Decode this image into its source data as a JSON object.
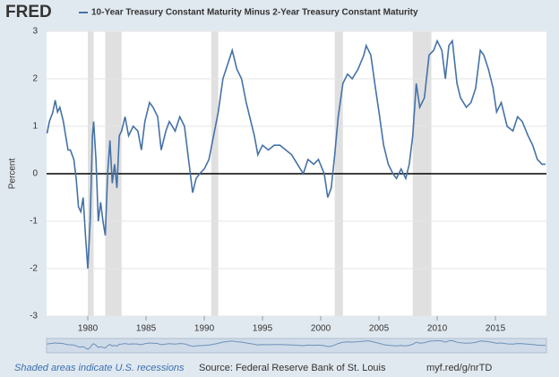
{
  "brand": "FRED",
  "chart_data": {
    "type": "line",
    "title": "10-Year Treasury Constant Maturity Minus 2-Year Treasury Constant Maturity",
    "y_label": "Percent",
    "xlim": [
      1976.46,
      2019.38
    ],
    "xticks": [
      1980,
      1985,
      1990,
      1995,
      2000,
      2005,
      2010,
      2015
    ],
    "ylim": [
      -3,
      3
    ],
    "yticks": [
      -3,
      -2,
      -1,
      0,
      1,
      2,
      3
    ],
    "grid": true,
    "recessions": [
      [
        1980.0,
        1980.5
      ],
      [
        1981.5,
        1982.9
      ],
      [
        1990.6,
        1991.2
      ],
      [
        2001.2,
        2001.9
      ],
      [
        2007.9,
        2009.5
      ]
    ],
    "series": [
      {
        "name": "10-Year Treasury Constant Maturity Minus 2-Year Treasury Constant Maturity",
        "color": "#4572a7",
        "x": [
          1976.5,
          1976.7,
          1977.0,
          1977.2,
          1977.4,
          1977.6,
          1977.9,
          1978.1,
          1978.3,
          1978.5,
          1978.8,
          1979.0,
          1979.2,
          1979.4,
          1979.6,
          1979.8,
          1980.0,
          1980.2,
          1980.4,
          1980.5,
          1980.7,
          1980.9,
          1981.1,
          1981.3,
          1981.5,
          1981.7,
          1981.9,
          1982.1,
          1982.3,
          1982.5,
          1982.7,
          1982.9,
          1983.2,
          1983.5,
          1983.9,
          1984.3,
          1984.6,
          1984.9,
          1985.3,
          1985.6,
          1986.0,
          1986.3,
          1986.7,
          1987.0,
          1987.5,
          1987.9,
          1988.3,
          1988.7,
          1989.0,
          1989.3,
          1989.6,
          1990.0,
          1990.4,
          1990.8,
          1991.2,
          1991.6,
          1992.0,
          1992.4,
          1992.8,
          1993.2,
          1993.6,
          1993.9,
          1994.3,
          1994.6,
          1995.0,
          1995.5,
          1996.0,
          1996.5,
          1997.0,
          1997.5,
          1998.0,
          1998.5,
          1998.9,
          1999.4,
          1999.8,
          2000.3,
          2000.6,
          2000.9,
          2001.2,
          2001.5,
          2001.9,
          2002.3,
          2002.7,
          2003.2,
          2003.7,
          2003.9,
          2004.3,
          2004.7,
          2005.0,
          2005.4,
          2005.8,
          2006.2,
          2006.5,
          2006.9,
          2007.3,
          2007.6,
          2007.9,
          2008.2,
          2008.5,
          2008.9,
          2009.3,
          2009.7,
          2010.0,
          2010.4,
          2010.7,
          2011.0,
          2011.3,
          2011.7,
          2012.0,
          2012.5,
          2012.9,
          2013.3,
          2013.7,
          2014.0,
          2014.4,
          2014.8,
          2015.1,
          2015.5,
          2016.0,
          2016.5,
          2016.9,
          2017.3,
          2017.8,
          2018.2,
          2018.6,
          2019.0,
          2019.3
        ],
        "values": [
          0.85,
          1.1,
          1.3,
          1.55,
          1.3,
          1.4,
          1.1,
          0.8,
          0.5,
          0.5,
          0.3,
          -0.1,
          -0.7,
          -0.8,
          -0.5,
          -1.3,
          -2.0,
          -1.0,
          0.8,
          1.1,
          0.3,
          -1.0,
          -0.6,
          -1.0,
          -1.3,
          0.0,
          0.7,
          -0.2,
          0.2,
          -0.3,
          0.8,
          0.9,
          1.2,
          0.8,
          1.0,
          0.9,
          0.5,
          1.1,
          1.5,
          1.4,
          1.2,
          0.5,
          0.9,
          1.1,
          0.9,
          1.2,
          1.0,
          0.2,
          -0.4,
          -0.1,
          0.0,
          0.1,
          0.3,
          0.8,
          1.3,
          2.0,
          2.3,
          2.6,
          2.2,
          2.0,
          1.5,
          1.2,
          0.8,
          0.4,
          0.6,
          0.5,
          0.6,
          0.6,
          0.5,
          0.4,
          0.2,
          0.0,
          0.3,
          0.2,
          0.3,
          0.0,
          -0.5,
          -0.3,
          0.4,
          1.2,
          1.9,
          2.1,
          2.0,
          2.2,
          2.5,
          2.7,
          2.5,
          1.8,
          1.3,
          0.6,
          0.2,
          0.0,
          -0.1,
          0.1,
          -0.1,
          0.2,
          0.8,
          1.9,
          1.4,
          1.6,
          2.5,
          2.6,
          2.8,
          2.6,
          2.0,
          2.7,
          2.8,
          1.9,
          1.6,
          1.4,
          1.5,
          1.8,
          2.6,
          2.5,
          2.2,
          1.8,
          1.3,
          1.5,
          1.0,
          0.9,
          1.2,
          1.1,
          0.8,
          0.6,
          0.3,
          0.2,
          0.2
        ]
      }
    ]
  },
  "footer": {
    "note": "Shaded areas indicate U.S. recessions",
    "source": "Source: Federal Reserve Bank of St. Louis",
    "link": "myf.red/g/nrTD"
  }
}
